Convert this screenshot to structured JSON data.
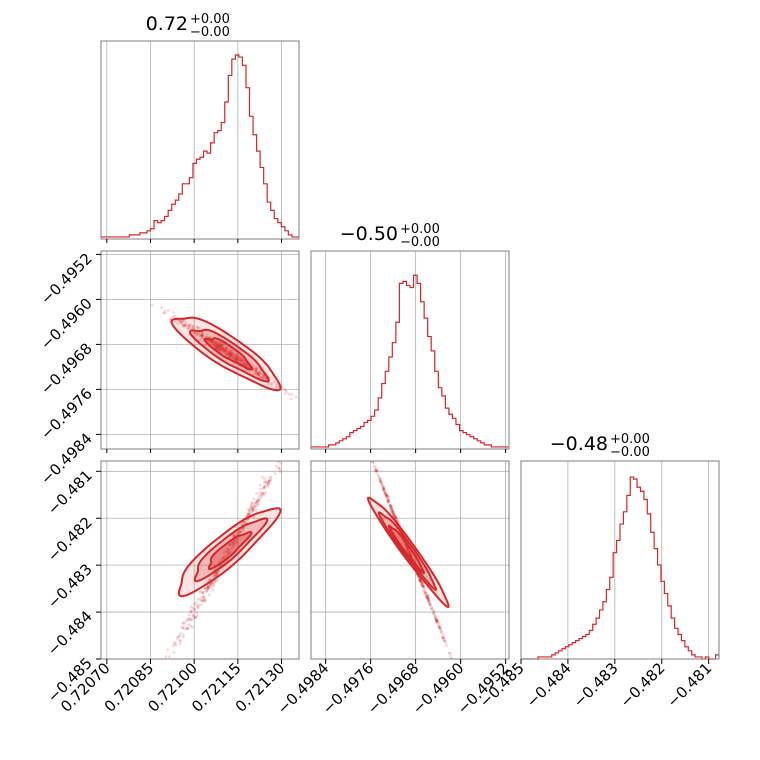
{
  "chart_data": {
    "type": "corner",
    "color": "#d62728",
    "grid": true,
    "parameters": [
      {
        "title": "0.72",
        "upper": "+0.00",
        "lower": "−0.00",
        "range": [
          0.72068,
          0.72136
        ],
        "ticks": [
          0.7207,
          0.72085,
          0.721,
          0.72115,
          0.7213
        ],
        "tick_labels": [
          "0.72070",
          "0.72085",
          "0.72100",
          "0.72115",
          "0.72130"
        ]
      },
      {
        "title": "−0.50",
        "upper": "+0.00",
        "lower": "−0.00",
        "range": [
          -0.49866,
          -0.49514
        ],
        "ticks": [
          -0.4984,
          -0.4976,
          -0.4968,
          -0.496,
          -0.4952
        ],
        "tick_labels": [
          "−0.4984",
          "−0.4976",
          "−0.4968",
          "−0.4960",
          "−0.4952"
        ]
      },
      {
        "title": "−0.48",
        "upper": "+0.00",
        "lower": "−0.00",
        "range": [
          -0.485,
          -0.48078
        ],
        "ticks": [
          -0.485,
          -0.484,
          -0.483,
          -0.482,
          -0.481
        ],
        "tick_labels": [
          "−0.485",
          "−0.484",
          "−0.483",
          "−0.482",
          "−0.481"
        ]
      }
    ],
    "histograms": [
      {
        "parameter": 0,
        "ymax": 90,
        "counts": [
          1,
          1,
          1,
          1,
          1,
          1,
          1,
          1,
          2,
          2,
          2,
          3,
          3,
          4,
          5,
          9,
          8,
          9,
          11,
          14,
          17,
          19,
          22,
          27,
          27,
          30,
          37,
          39,
          40,
          43,
          42,
          47,
          52,
          53,
          57,
          67,
          80,
          88,
          90,
          89,
          85,
          74,
          60,
          51,
          43,
          35,
          27,
          18,
          14,
          10,
          8,
          6,
          4,
          2,
          1,
          1
        ]
      },
      {
        "parameter": 1,
        "ymax": 90,
        "counts": [
          1,
          1,
          1,
          1,
          1,
          2,
          2,
          3,
          4,
          5,
          6,
          8,
          9,
          10,
          11,
          13,
          14,
          16,
          19,
          25,
          32,
          38,
          45,
          52,
          62,
          81,
          82,
          80,
          79,
          85,
          81,
          72,
          64,
          55,
          48,
          38,
          30,
          26,
          20,
          17,
          15,
          12,
          9,
          8,
          7,
          6,
          5,
          4,
          3,
          2,
          2,
          1,
          1,
          1,
          1,
          1
        ]
      },
      {
        "parameter": 2,
        "ymax": 90,
        "counts": [
          0,
          0,
          0,
          0,
          0,
          1,
          1,
          1,
          1,
          2,
          3,
          4,
          5,
          6,
          7,
          8,
          9,
          10,
          11,
          12,
          14,
          17,
          20,
          24,
          28,
          34,
          40,
          52,
          58,
          66,
          72,
          80,
          89,
          88,
          84,
          82,
          78,
          71,
          62,
          54,
          46,
          38,
          32,
          26,
          20,
          15,
          12,
          9,
          6,
          4,
          2,
          1,
          1,
          0,
          1,
          0,
          0,
          2
        ]
      }
    ],
    "pairs": [
      {
        "x_param": 0,
        "y_param": 1,
        "correlation": "negative"
      },
      {
        "x_param": 0,
        "y_param": 2,
        "correlation": "positive"
      },
      {
        "x_param": 1,
        "y_param": 2,
        "correlation": "negative"
      }
    ]
  }
}
